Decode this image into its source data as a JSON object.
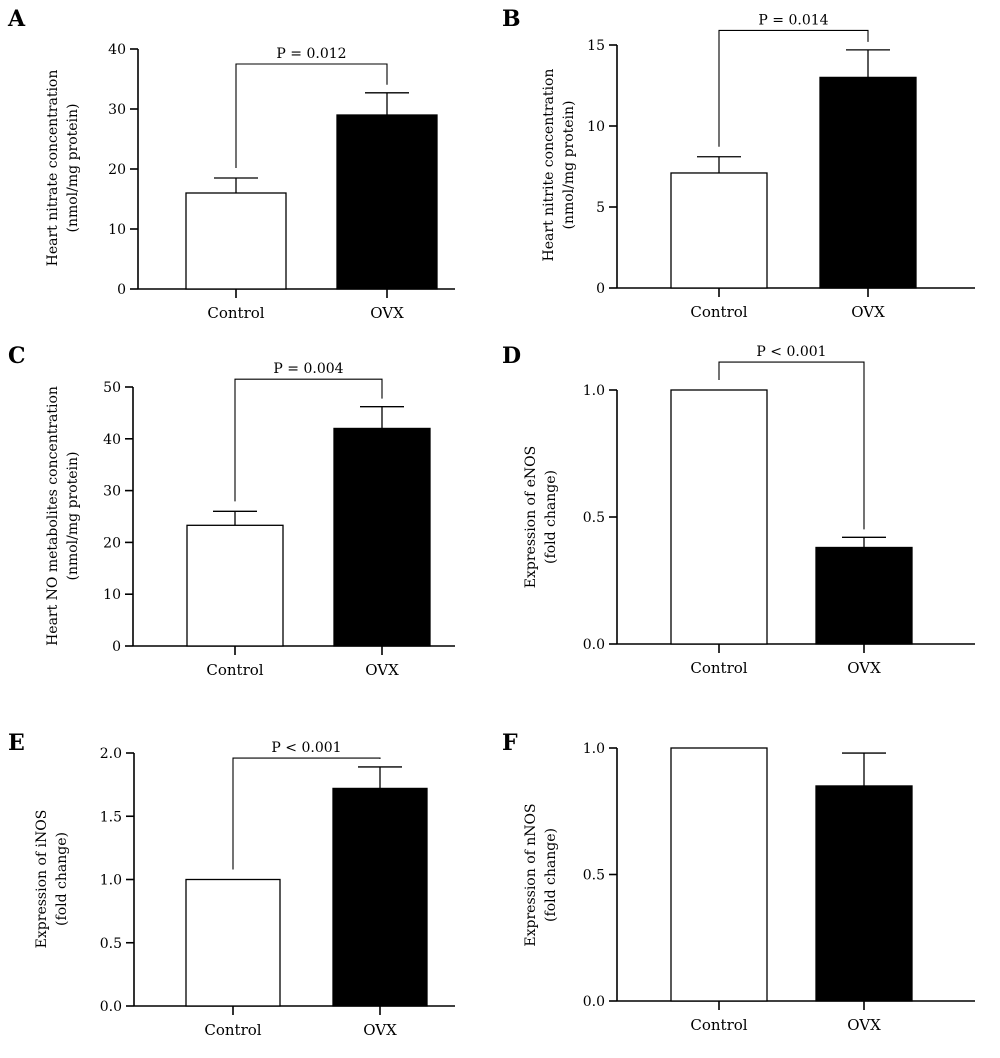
{
  "chart_data": [
    {
      "panel": "A",
      "type": "bar",
      "categories": [
        "Control",
        "OVX"
      ],
      "values": [
        16,
        29
      ],
      "errors": [
        2.5,
        3.7
      ],
      "ylabel": [
        "Heart nitrate concentration",
        "(nmol/mg protein)"
      ],
      "ylim": [
        0,
        40
      ],
      "ticks": [
        0,
        10,
        20,
        30,
        40
      ],
      "tick_labels": [
        "0",
        "10",
        "20",
        "30",
        "40"
      ],
      "pvalue": "P = 0.012",
      "bracket_y": 37.5
    },
    {
      "panel": "B",
      "type": "bar",
      "categories": [
        "Control",
        "OVX"
      ],
      "values": [
        7.1,
        13
      ],
      "errors": [
        1.0,
        1.7
      ],
      "ylabel": [
        "Heart nitrite concentration",
        "(nmol/mg protein)"
      ],
      "ylim": [
        0,
        15
      ],
      "ticks": [
        0,
        5,
        10,
        15
      ],
      "tick_labels": [
        "0",
        "5",
        "10",
        "15"
      ],
      "pvalue": "P = 0.014",
      "bracket_y": 15.9
    },
    {
      "panel": "C",
      "type": "bar",
      "categories": [
        "Control",
        "OVX"
      ],
      "values": [
        23.3,
        42
      ],
      "errors": [
        2.7,
        4.2
      ],
      "ylabel": [
        "Heart NO metabolites concentration",
        "(nmol/mg protein)"
      ],
      "ylim": [
        0,
        50
      ],
      "ticks": [
        0,
        10,
        20,
        30,
        40,
        50
      ],
      "tick_labels": [
        "0",
        "10",
        "20",
        "30",
        "40",
        "50"
      ],
      "pvalue": "P = 0.004",
      "bracket_y": 51.5
    },
    {
      "panel": "D",
      "type": "bar",
      "categories": [
        "Control",
        "OVX"
      ],
      "values": [
        1.0,
        0.38
      ],
      "errors": [
        0,
        0.04
      ],
      "ylabel": [
        "Expression of eNOS",
        "(fold change)"
      ],
      "ylim": [
        0,
        1.0
      ],
      "ticks": [
        0,
        0.5,
        1.0
      ],
      "tick_labels": [
        "0.0",
        "0.5",
        "1.0"
      ],
      "pvalue": "P < 0.001",
      "bracket_y": 1.11
    },
    {
      "panel": "E",
      "type": "bar",
      "categories": [
        "Control",
        "OVX"
      ],
      "values": [
        1.0,
        1.72
      ],
      "errors": [
        0,
        0.17
      ],
      "ylabel": [
        "Expression of iNOS",
        "(fold change)"
      ],
      "ylim": [
        0,
        2.0
      ],
      "ticks": [
        0,
        0.5,
        1.0,
        1.5,
        2.0
      ],
      "tick_labels": [
        "0.0",
        "0.5",
        "1.0",
        "1.5",
        "2.0"
      ],
      "pvalue": "P < 0.001",
      "bracket_y": 1.96
    },
    {
      "panel": "F",
      "type": "bar",
      "categories": [
        "Control",
        "OVX"
      ],
      "values": [
        1.0,
        0.85
      ],
      "errors": [
        0,
        0.13
      ],
      "ylabel": [
        "Expression of nNOS",
        "(fold change)"
      ],
      "ylim": [
        0,
        1.0
      ],
      "ticks": [
        0,
        0.5,
        1.0
      ],
      "tick_labels": [
        "0.0",
        "0.5",
        "1.0"
      ],
      "pvalue": "",
      "bracket_y": null
    }
  ]
}
